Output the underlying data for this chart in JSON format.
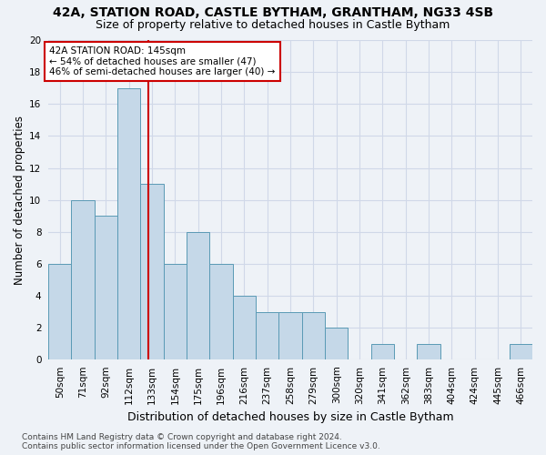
{
  "title1": "42A, STATION ROAD, CASTLE BYTHAM, GRANTHAM, NG33 4SB",
  "title2": "Size of property relative to detached houses in Castle Bytham",
  "xlabel": "Distribution of detached houses by size in Castle Bytham",
  "ylabel": "Number of detached properties",
  "bin_labels": [
    "50sqm",
    "71sqm",
    "92sqm",
    "112sqm",
    "133sqm",
    "154sqm",
    "175sqm",
    "196sqm",
    "216sqm",
    "237sqm",
    "258sqm",
    "279sqm",
    "300sqm",
    "320sqm",
    "341sqm",
    "362sqm",
    "383sqm",
    "404sqm",
    "424sqm",
    "445sqm",
    "466sqm"
  ],
  "values": [
    6,
    10,
    9,
    17,
    11,
    6,
    8,
    6,
    4,
    3,
    3,
    3,
    2,
    0,
    1,
    0,
    1,
    0,
    0,
    0,
    1
  ],
  "bar_color": "#c5d8e8",
  "bar_edge_color": "#5a9ab5",
  "vline_pos": 4.33,
  "vline_color": "#cc0000",
  "annotation_line1": "42A STATION ROAD: 145sqm",
  "annotation_line2": "← 54% of detached houses are smaller (47)",
  "annotation_line3": "46% of semi-detached houses are larger (40) →",
  "annotation_box_color": "#ffffff",
  "annotation_box_edge": "#cc0000",
  "ylim": [
    0,
    20
  ],
  "yticks": [
    0,
    2,
    4,
    6,
    8,
    10,
    12,
    14,
    16,
    18,
    20
  ],
  "footnote": "Contains HM Land Registry data © Crown copyright and database right 2024.\nContains public sector information licensed under the Open Government Licence v3.0.",
  "bg_color": "#eef2f7",
  "grid_color": "#d0d8e8",
  "title1_fontsize": 10,
  "title2_fontsize": 9,
  "xlabel_fontsize": 9,
  "ylabel_fontsize": 8.5,
  "tick_fontsize": 7.5,
  "footnote_fontsize": 6.5
}
